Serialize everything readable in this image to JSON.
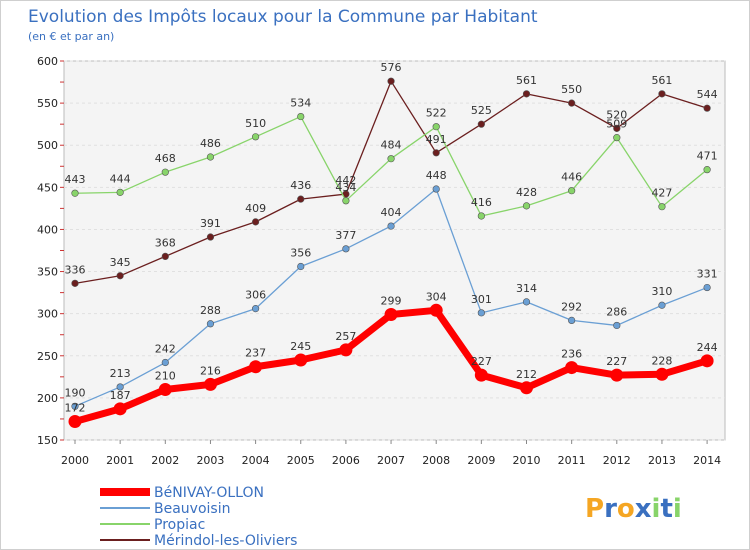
{
  "chart_data": {
    "type": "line",
    "title": "Evolution des Impôts locaux pour la Commune par Habitant",
    "subtitle": "(en € et par an)",
    "x": [
      "2000",
      "2001",
      "2002",
      "2003",
      "2004",
      "2005",
      "2006",
      "2007",
      "2008",
      "2009",
      "2010",
      "2011",
      "2012",
      "2013",
      "2014"
    ],
    "ylim": [
      150,
      600
    ],
    "yticks": [
      150,
      200,
      250,
      300,
      350,
      400,
      450,
      500,
      550,
      600
    ],
    "grid": true,
    "series": [
      {
        "name": "Mérindol-les-Oliviers",
        "color": "#6b1f1f",
        "values": [
          336,
          345,
          368,
          391,
          409,
          436,
          442,
          576,
          491,
          525,
          561,
          550,
          520,
          561,
          544
        ]
      },
      {
        "name": "Propiac",
        "color": "#88d46a",
        "values": [
          443,
          444,
          468,
          486,
          510,
          534,
          434,
          484,
          522,
          416,
          428,
          446,
          509,
          427,
          471
        ]
      },
      {
        "name": "Beauvoisin",
        "color": "#6a9fd4",
        "values": [
          190,
          213,
          242,
          288,
          306,
          356,
          377,
          404,
          448,
          301,
          314,
          292,
          286,
          310,
          331
        ]
      },
      {
        "name": "BéNIVAY-OLLON",
        "color": "#ff0000",
        "values": [
          172,
          187,
          210,
          216,
          237,
          245,
          257,
          299,
          304,
          227,
          212,
          236,
          227,
          228,
          244
        ]
      }
    ],
    "legend": [
      "BéNIVAY-OLLON",
      "Beauvoisin",
      "Propiac",
      "Mérindol-les-Oliviers"
    ],
    "legend_placement": "bottom-left"
  },
  "brand": {
    "text": "Proxiti",
    "letters": [
      "P",
      "r",
      "o",
      "x",
      "i",
      "t",
      "i"
    ],
    "colors": [
      "#f5a623",
      "#3a70c0",
      "#f5a623",
      "#3a70c0",
      "#88d46a",
      "#3a70c0",
      "#88d46a"
    ]
  }
}
